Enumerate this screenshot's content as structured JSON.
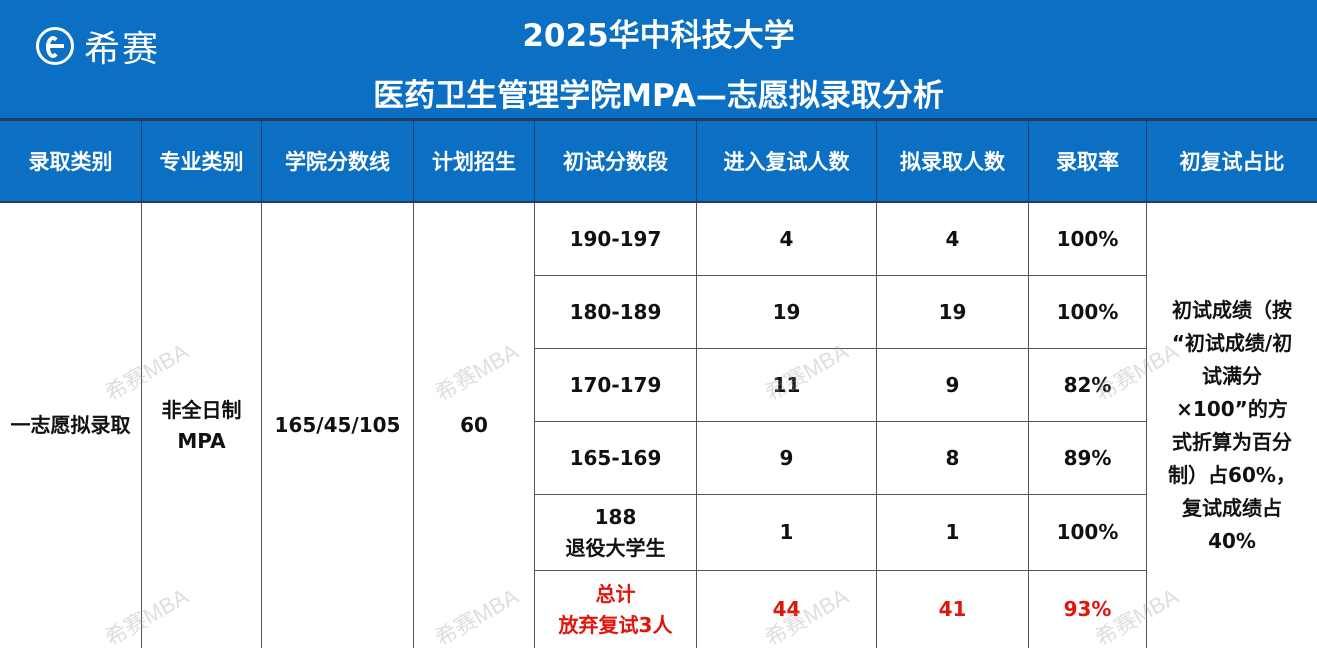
{
  "brand": {
    "logo_icon": "xisai-logo-icon",
    "name": "希赛"
  },
  "title": {
    "line1": "2025华中科技大学",
    "line2": "医药卫生管理学院MPA—志愿拟录取分析"
  },
  "columns": [
    "录取类别",
    "专业类别",
    "学院分数线",
    "计划招生",
    "初试分数段",
    "进入复试人数",
    "拟录取人数",
    "录取率",
    "初复试占比"
  ],
  "summary": {
    "category": "一志愿拟录取",
    "major": "非全日制\nMPA",
    "cutoff": "165/45/105",
    "plan": "60",
    "ratio_note": "初试成绩（按\n“初试成绩/初\n试满分\n×100”的方\n式折算为百分\n制）占60%，\n复试成绩占\n40%"
  },
  "rows": [
    {
      "range": "190-197",
      "retest": "4",
      "admitted": "4",
      "rate": "100%"
    },
    {
      "range": "180-189",
      "retest": "19",
      "admitted": "19",
      "rate": "100%"
    },
    {
      "range": "170-179",
      "retest": "11",
      "admitted": "9",
      "rate": "82%"
    },
    {
      "range": "165-169",
      "retest": "9",
      "admitted": "8",
      "rate": "89%"
    },
    {
      "range": "188\n退役大学生",
      "retest": "1",
      "admitted": "1",
      "rate": "100%"
    }
  ],
  "total": {
    "label": "总计\n放弃复试3人",
    "retest": "44",
    "admitted": "41",
    "rate": "93%"
  },
  "watermark": "希赛MBA",
  "colors": {
    "header_blue": "#0b6fc3",
    "highlight_red": "#e0150b"
  }
}
